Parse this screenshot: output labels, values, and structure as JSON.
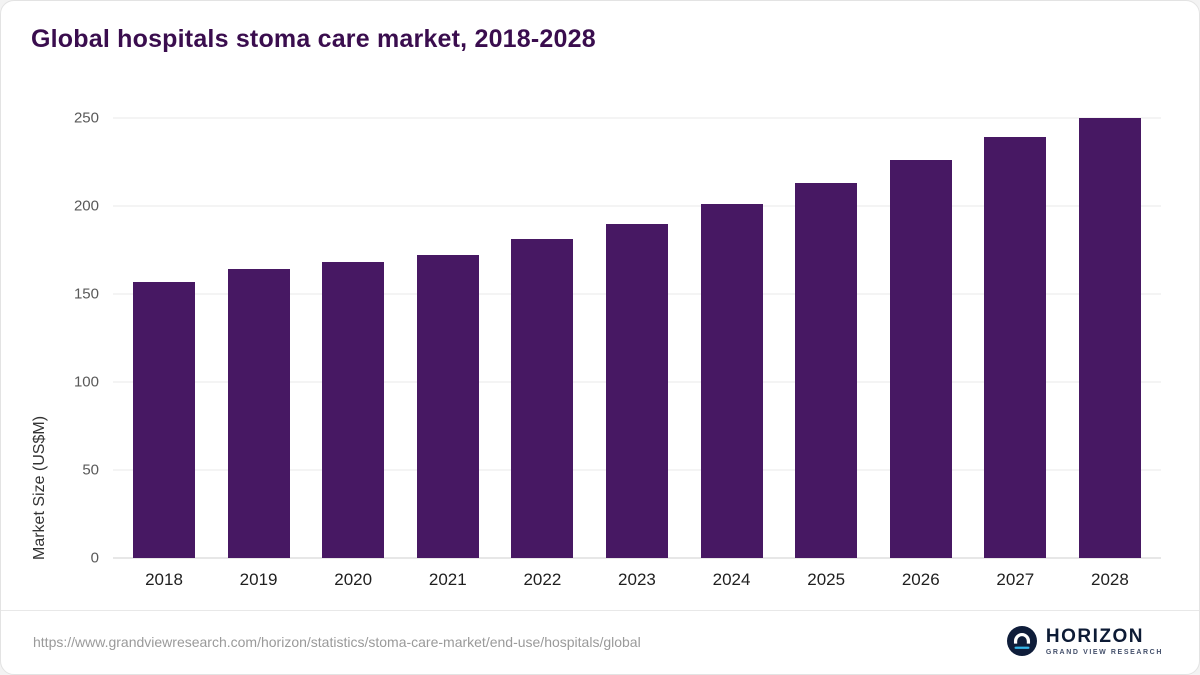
{
  "chart_data": {
    "type": "bar",
    "title": "Global hospitals stoma care market, 2018-2028",
    "xlabel": "",
    "ylabel": "Market Size (US$M)",
    "categories": [
      "2018",
      "2019",
      "2020",
      "2021",
      "2022",
      "2023",
      "2024",
      "2025",
      "2026",
      "2027",
      "2028"
    ],
    "values": [
      157,
      164,
      168,
      172,
      181,
      190,
      201,
      213,
      226,
      239,
      255
    ],
    "yticks": [
      0,
      50,
      100,
      150,
      200,
      250
    ],
    "ylim": [
      0,
      260
    ],
    "bar_color": "#471863",
    "grid": true,
    "legend": false
  },
  "footer": {
    "source_url": "https://www.grandviewresearch.com/horizon/statistics/stoma-care-market/end-use/hospitals/global",
    "logo_title": "HORIZON",
    "logo_subtitle": "GRAND VIEW RESEARCH"
  }
}
